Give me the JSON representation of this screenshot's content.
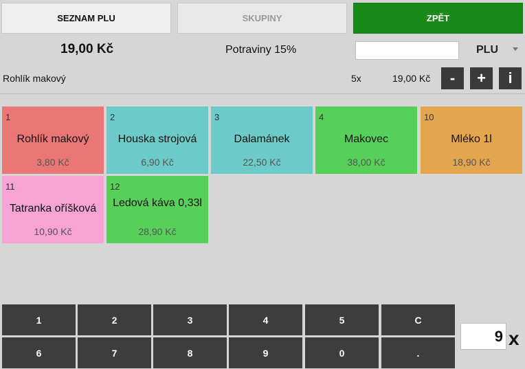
{
  "top": {
    "seznam_label": "SEZNAM PLU",
    "skupiny_label": "SKUPINY",
    "zpet_label": "ZPĚT"
  },
  "summary": {
    "total": "19,00 Kč",
    "group": "Potraviny 15%",
    "plu_input_value": "",
    "plu_mode": "PLU"
  },
  "current_item": {
    "name": "Rohlík makový",
    "quantity": "5x",
    "price": "19,00 Kč",
    "minus_label": "-",
    "plus_label": "+",
    "info_label": "i"
  },
  "tiles": [
    {
      "num": "1",
      "name": "Rohlík makový",
      "price": "3,80 Kč",
      "color": "#ea7676"
    },
    {
      "num": "2",
      "name": "Houska strojová",
      "price": "6,90 Kč",
      "color": "#6ccbc8"
    },
    {
      "num": "3",
      "name": "Dalamánek",
      "price": "22,50 Kč",
      "color": "#6ccbc8"
    },
    {
      "num": "4",
      "name": "Makovec",
      "price": "38,00 Kč",
      "color": "#57d05a"
    },
    {
      "num": "10",
      "name": "Mléko 1l",
      "price": "18,90 Kč",
      "color": "#e3a64e"
    },
    {
      "num": "11",
      "name": "Tatranka oříšková",
      "price": "10,90 Kč",
      "color": "#f7a3d3"
    },
    {
      "num": "12",
      "name": "Ledová káva 0,33l",
      "price": "28,90 Kč",
      "color": "#57d05a"
    }
  ],
  "keypad": {
    "row1": [
      "1",
      "2",
      "3",
      "4",
      "5",
      "C"
    ],
    "row2": [
      "6",
      "7",
      "8",
      "9",
      "0",
      "."
    ]
  },
  "multiplier": {
    "value": "9",
    "symbol": "x"
  }
}
